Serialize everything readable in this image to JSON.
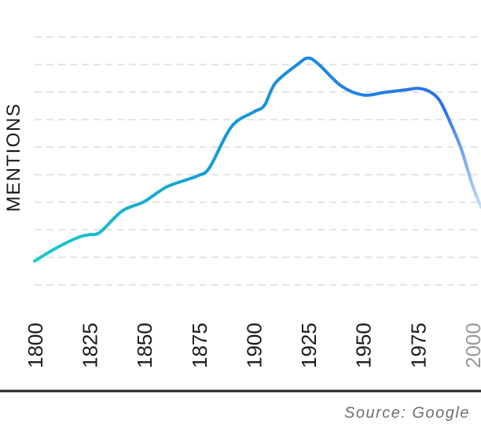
{
  "chart_data": {
    "type": "line",
    "title": "",
    "xlabel": "",
    "ylabel": "MENTIONS",
    "x": [
      1800,
      1810,
      1820,
      1825,
      1830,
      1840,
      1850,
      1860,
      1870,
      1875,
      1880,
      1890,
      1900,
      1905,
      1910,
      1920,
      1925,
      1930,
      1940,
      1950,
      1960,
      1970,
      1975,
      1980,
      1985,
      1990,
      1995,
      2000,
      2004
    ],
    "y": [
      0,
      1.0,
      1.8,
      2.0,
      2.2,
      3.8,
      4.5,
      5.6,
      6.2,
      6.5,
      7.1,
      10.2,
      11.3,
      11.8,
      13.5,
      14.9,
      15.4,
      14.9,
      13.3,
      12.6,
      12.8,
      13.0,
      13.1,
      12.9,
      12.2,
      10.5,
      8.5,
      5.8,
      4.1
    ],
    "ylim": [
      -1.8,
      17
    ],
    "xlim": [
      1800,
      2004
    ],
    "x_ticks": [
      "1800",
      "1825",
      "1850",
      "1875",
      "1900",
      "1925",
      "1950",
      "1975",
      "2000"
    ],
    "future_ticks": [
      "2000"
    ],
    "grid": true,
    "grid_lines": 10,
    "grid_style": "dashed-horizontal",
    "colors": {
      "line_start": "#1ccbc3",
      "line_mid": "#1596da",
      "line_end": "#2a72e8",
      "line_fade": "#c4dcf8",
      "grid": "#dcdcdc",
      "baseline": "#222222"
    }
  },
  "source": "Source: Google"
}
